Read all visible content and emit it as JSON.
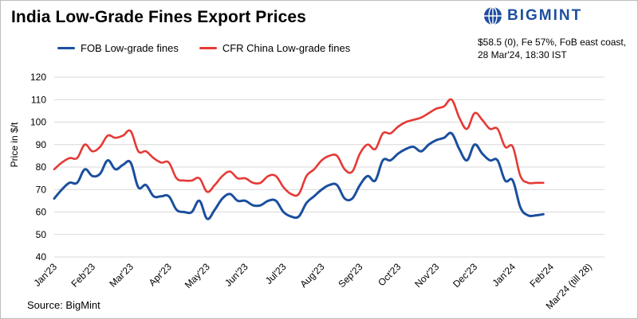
{
  "header": {
    "title": "India Low-Grade Fines Export Prices",
    "brand": "BIGMINT",
    "note_line1": "$58.5 (0), Fe 57%, FoB east coast,",
    "note_line2": "28 Mar'24, 18:30 IST"
  },
  "footer": {
    "source": "Source: BigMint"
  },
  "colors": {
    "fob": "#1b4f9e",
    "cfr": "#e53935",
    "brand": "#1e4fa0"
  },
  "chart_data": {
    "type": "line",
    "title": "India Low-Grade Fines Export Prices",
    "xlabel": "",
    "ylabel": "Price in $/t",
    "ylim": [
      40,
      120
    ],
    "yticks": [
      40,
      50,
      60,
      70,
      80,
      90,
      100,
      110,
      120
    ],
    "grid": true,
    "legend_position": "top-left",
    "x_index_range": [
      0,
      64
    ],
    "tick_labels": [
      {
        "label": "Jan'23",
        "x": 0
      },
      {
        "label": "Feb'23",
        "x": 5
      },
      {
        "label": "Mar'23",
        "x": 10
      },
      {
        "label": "Apr'23",
        "x": 15
      },
      {
        "label": "May'23",
        "x": 20
      },
      {
        "label": "Jun'23",
        "x": 25
      },
      {
        "label": "Jul'23",
        "x": 30
      },
      {
        "label": "Aug'23",
        "x": 35
      },
      {
        "label": "Sep'23",
        "x": 40
      },
      {
        "label": "Oct'23",
        "x": 45
      },
      {
        "label": "Nov'23",
        "x": 50
      },
      {
        "label": "Dec'23",
        "x": 55
      },
      {
        "label": "Jan'24",
        "x": 60
      },
      {
        "label": "Feb'24",
        "x": 65
      },
      {
        "label": "Mar'24 (till 28)",
        "x": 70
      }
    ],
    "series": [
      {
        "name": "FOB Low-grade fines",
        "color": "#1b4f9e",
        "values": [
          66,
          70,
          73,
          73,
          79,
          76,
          77,
          83,
          79,
          81,
          82,
          71,
          72,
          67,
          67,
          67,
          61,
          60,
          60,
          65,
          57,
          61,
          66,
          68,
          65,
          65,
          63,
          63,
          65,
          65,
          60,
          58,
          58,
          64,
          67,
          70,
          72,
          72,
          66,
          66,
          72,
          76,
          74,
          83,
          83,
          86,
          88,
          89,
          87,
          90,
          92,
          93,
          95,
          88,
          83,
          90,
          86,
          83,
          83,
          74,
          74,
          62,
          58.5,
          58.5,
          59
        ]
      },
      {
        "name": "CFR China Low-grade fines",
        "color": "#e53935",
        "values": [
          79,
          82,
          84,
          84,
          90,
          87,
          89,
          94,
          93,
          94,
          96,
          87,
          87,
          84,
          82,
          82,
          75,
          74,
          74,
          75,
          69,
          72,
          76,
          78,
          75,
          75,
          73,
          73,
          76,
          76,
          71,
          68,
          68,
          76,
          79,
          83,
          85,
          85,
          79,
          78,
          86,
          90,
          88,
          95,
          95,
          98,
          100,
          101,
          102,
          104,
          106,
          107,
          110,
          102,
          97,
          104,
          101,
          97,
          97,
          89,
          89,
          76,
          73,
          73,
          73
        ]
      }
    ]
  }
}
